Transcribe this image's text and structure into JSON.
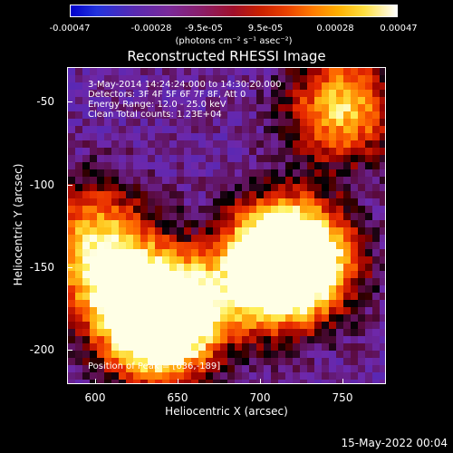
{
  "chart_data": {
    "type": "heatmap",
    "title": "Reconstructed RHESSI Image",
    "xlabel": "Heliocentric X (arcsec)",
    "ylabel": "Heliocentric Y (arcsec)",
    "xlim": [
      583,
      775
    ],
    "ylim": [
      -222,
      -31
    ],
    "x_ticks": [
      "600",
      "650",
      "700",
      "750"
    ],
    "y_ticks": [
      "-50",
      "-100",
      "-150",
      "-200"
    ],
    "colorbar": {
      "min": -0.00047,
      "max": 0.00047,
      "ticks": [
        "-0.00047",
        "-0.00028",
        "-9.5e-05",
        "9.5e-05",
        "0.00028",
        "0.00047"
      ],
      "units_label": "(photons cm⁻² s⁻¹ asec⁻²)",
      "colormap": "blue-purple-red-yellow-white"
    },
    "annotations": [
      "3-May-2014 14:24:24.000 to 14:30:20.000",
      "Detectors: 3F 4F 5F 6F 7F 8F, Att 0",
      "Energy Range: 12.0 - 25.0 keV",
      "Clean    Total counts: 1.23E+04"
    ],
    "peak_label": "Position of Peak = [636,-189]",
    "peak": [
      636,
      -189
    ],
    "bright_regions": [
      {
        "x": 636,
        "y": -189,
        "level": 1.0
      },
      {
        "x": 645,
        "y": -175,
        "level": 0.9
      },
      {
        "x": 712,
        "y": -140,
        "level": 0.9
      },
      {
        "x": 725,
        "y": -150,
        "level": 0.85
      },
      {
        "x": 748,
        "y": -55,
        "level": 0.8
      },
      {
        "x": 700,
        "y": -160,
        "level": 0.7
      },
      {
        "x": 600,
        "y": -130,
        "level": 0.6
      },
      {
        "x": 610,
        "y": -160,
        "level": 0.65
      }
    ]
  },
  "footer": {
    "timestamp": "15-May-2022 00:04"
  }
}
